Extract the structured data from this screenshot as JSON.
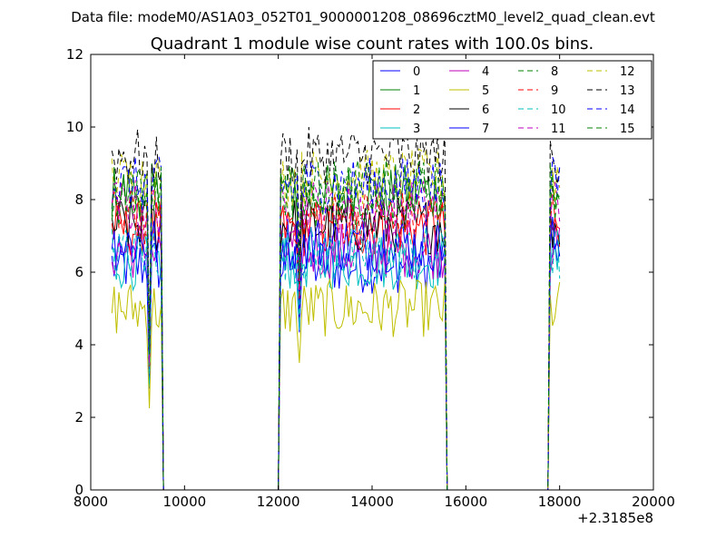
{
  "header": {
    "data_file": "Data file: modeM0/AS1A03_052T01_9000001208_08696cztM0_level2_quad_clean.evt"
  },
  "chart_data": {
    "type": "line",
    "title": "Quadrant 1 module wise count rates with 100.0s bins.",
    "xlabel": "",
    "ylabel": "",
    "xlim": [
      8000,
      20000
    ],
    "ylim": [
      0,
      12
    ],
    "x_ticks": [
      8000,
      10000,
      12000,
      14000,
      16000,
      18000,
      20000
    ],
    "x_tick_labels": [
      "8000",
      "10000",
      "12000",
      "14000",
      "16000",
      "18000",
      "20000"
    ],
    "y_ticks": [
      0,
      2,
      4,
      6,
      8,
      10,
      12
    ],
    "y_tick_labels": [
      "0",
      "2",
      "4",
      "6",
      "8",
      "10",
      "12"
    ],
    "x_offset_label": "+2.3185e8",
    "grid": false,
    "legend_position": "top-right",
    "legend_columns": 4,
    "segments": [
      {
        "x_start": 8450,
        "x_end": 9550,
        "step": 50,
        "drop_end": 9550
      },
      {
        "x_start": 12000,
        "x_end": 15600,
        "step": 50,
        "drop_start": 12000,
        "drop_end": 15600
      },
      {
        "x_start": 17750,
        "x_end": 18000,
        "step": 50,
        "drop_start": 17750
      }
    ],
    "series": [
      {
        "name": "0",
        "color": "#0000ff",
        "dash": "solid",
        "level": 6.2
      },
      {
        "name": "1",
        "color": "#008000",
        "dash": "solid",
        "level": 8.2
      },
      {
        "name": "2",
        "color": "#ff0000",
        "dash": "solid",
        "level": 7.2
      },
      {
        "name": "3",
        "color": "#00bfbf",
        "dash": "solid",
        "level": 6.3
      },
      {
        "name": "4",
        "color": "#bf00bf",
        "dash": "solid",
        "level": 6.6
      },
      {
        "name": "5",
        "color": "#bfbf00",
        "dash": "solid",
        "level": 5.0
      },
      {
        "name": "6",
        "color": "#000000",
        "dash": "solid",
        "level": 7.3
      },
      {
        "name": "7",
        "color": "#0000ff",
        "dash": "solid",
        "level": 6.8
      },
      {
        "name": "8",
        "color": "#008000",
        "dash": "dashed",
        "level": 8.0
      },
      {
        "name": "9",
        "color": "#ff0000",
        "dash": "dashed",
        "level": 7.5
      },
      {
        "name": "10",
        "color": "#00bfbf",
        "dash": "dashed",
        "level": 6.5
      },
      {
        "name": "11",
        "color": "#bf00bf",
        "dash": "dashed",
        "level": 7.8
      },
      {
        "name": "12",
        "color": "#bfbf00",
        "dash": "dashed",
        "level": 8.6
      },
      {
        "name": "13",
        "color": "#000000",
        "dash": "dashed",
        "level": 9.2
      },
      {
        "name": "14",
        "color": "#0000ff",
        "dash": "dashed",
        "level": 8.4
      },
      {
        "name": "15",
        "color": "#008000",
        "dash": "dashed",
        "level": 8.3
      }
    ]
  }
}
